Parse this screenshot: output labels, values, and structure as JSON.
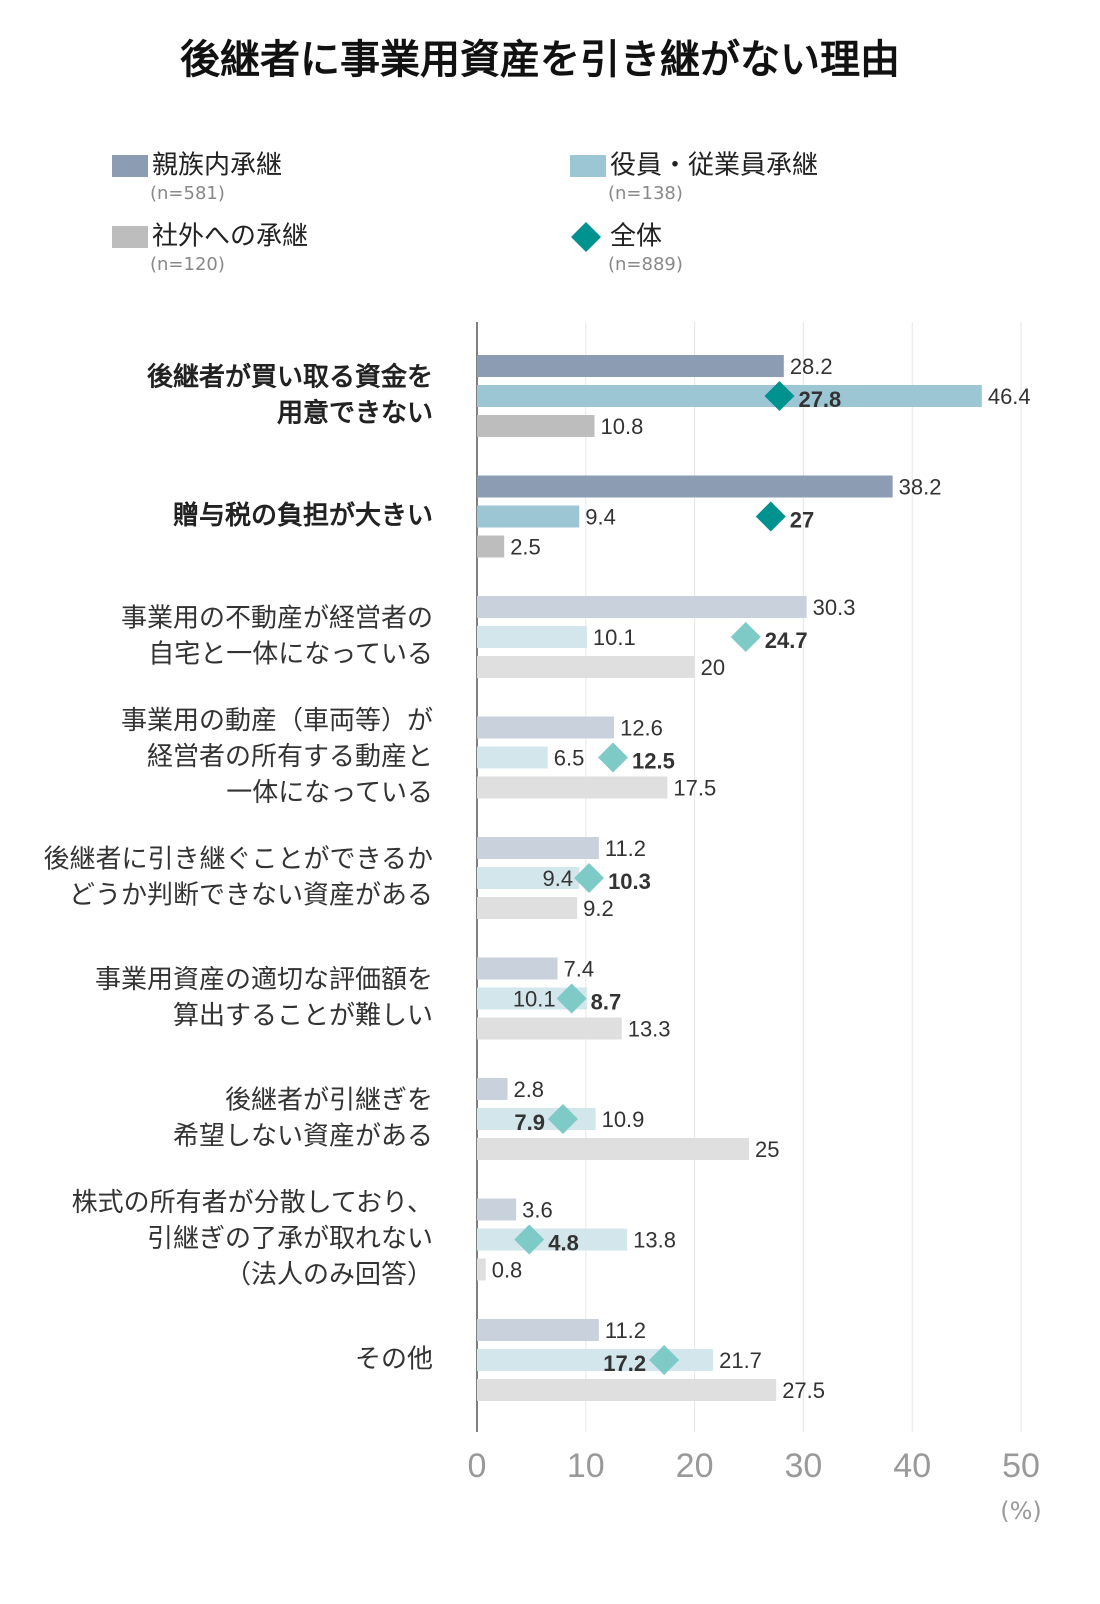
{
  "chart_data": {
    "type": "bar",
    "orientation": "horizontal",
    "title": "後継者に事業用資産を引き継がない理由",
    "categories": [
      [
        "後継者が買い取る資金を",
        "用意できない"
      ],
      [
        "贈与税の負担が大きい"
      ],
      [
        "事業用の不動産が経営者の",
        "自宅と一体になっている"
      ],
      [
        "事業用の動産（車両等）が",
        "経営者の所有する動産と",
        "一体になっている"
      ],
      [
        "後継者に引き継ぐことができるか",
        "どうか判断できない資産がある"
      ],
      [
        "事業用資産の適切な評価額を",
        "算出することが難しい"
      ],
      [
        "後継者が引継ぎを",
        "希望しない資産がある"
      ],
      [
        "株式の所有者が分散しており、",
        "引継ぎの了承が取れない",
        "（法人のみ回答）"
      ],
      [
        "その他"
      ]
    ],
    "emphasis": [
      true,
      true,
      false,
      false,
      false,
      false,
      false,
      false,
      false
    ],
    "series": [
      {
        "name": "親族内承継",
        "note": "(n=581)",
        "color": "#8c9db3",
        "muted_color": "#c8d1dc",
        "values": [
          28.2,
          38.2,
          30.3,
          12.6,
          11.2,
          7.4,
          2.8,
          3.6,
          11.2
        ]
      },
      {
        "name": "役員・従業員承継",
        "note": "(n=138)",
        "color": "#9dc6d5",
        "muted_color": "#d3e6ec",
        "values": [
          46.4,
          9.4,
          10.1,
          6.5,
          9.4,
          10.1,
          10.9,
          13.8,
          21.7
        ]
      },
      {
        "name": "社外への承継",
        "note": "(n=120)",
        "color": "#bdbdbd",
        "muted_color": "#dfdfdf",
        "values": [
          10.8,
          2.5,
          20,
          17.5,
          9.2,
          13.3,
          25,
          0.8,
          27.5
        ]
      },
      {
        "name": "全体",
        "note": "(n=889)",
        "marker": "diamond",
        "color": "#00928f",
        "muted_color": "#7dcac6",
        "values": [
          27.8,
          27,
          24.7,
          12.5,
          10.3,
          8.7,
          7.9,
          4.8,
          17.2
        ]
      }
    ],
    "xlim": [
      0,
      50
    ],
    "xticks": [
      0,
      10,
      20,
      30,
      40,
      50
    ],
    "x_unit": "(%)",
    "grid": true
  }
}
